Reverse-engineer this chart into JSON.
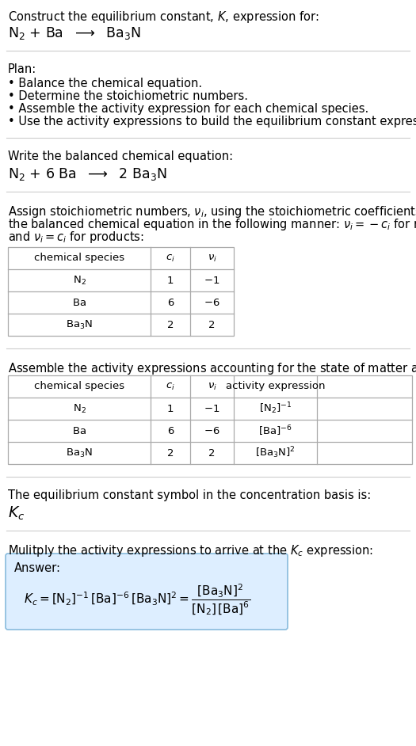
{
  "bg_color": "#ffffff",
  "text_color": "#000000",
  "table_border_color": "#aaaaaa",
  "answer_box_color": "#ddeeff",
  "answer_box_border": "#88bbdd",
  "separator_color": "#bbbbbb",
  "font_size": 10.5,
  "small_font": 9.5,
  "title_line1": "Construct the equilibrium constant, $K$, expression for:",
  "title_line2_parts": [
    "N",
    "2",
    " + Ba  ",
    "→",
    "  Ba",
    "3",
    "N"
  ],
  "plan_header": "Plan:",
  "plan_bullets": [
    "• Balance the chemical equation.",
    "• Determine the stoichiometric numbers.",
    "• Assemble the activity expression for each chemical species.",
    "• Use the activity expressions to build the equilibrium constant expression."
  ],
  "balanced_header": "Write the balanced chemical equation:",
  "stoich_header_lines": [
    "Assign stoichiometric numbers, $\\nu_i$, using the stoichiometric coefficients, $c_i$, from",
    "the balanced chemical equation in the following manner: $\\nu_i = -c_i$ for reactants",
    "and $\\nu_i = c_i$ for products:"
  ],
  "table1_headers": [
    "chemical species",
    "$c_i$",
    "$\\nu_i$"
  ],
  "table1_rows": [
    [
      "$\\mathrm{N_2}$",
      "1",
      "$-1$"
    ],
    [
      "$\\mathrm{Ba}$",
      "6",
      "$-6$"
    ],
    [
      "$\\mathrm{Ba_3N}$",
      "2",
      "2"
    ]
  ],
  "activity_header": "Assemble the activity expressions accounting for the state of matter and $\\nu_i$:",
  "table2_headers": [
    "chemical species",
    "$c_i$",
    "$\\nu_i$",
    "activity expression"
  ],
  "table2_rows": [
    [
      "$\\mathrm{N_2}$",
      "1",
      "$-1$",
      "$[\\mathrm{N_2}]^{-1}$"
    ],
    [
      "$\\mathrm{Ba}$",
      "6",
      "$-6$",
      "$[\\mathrm{Ba}]^{-6}$"
    ],
    [
      "$\\mathrm{Ba_3N}$",
      "2",
      "2",
      "$[\\mathrm{Ba_3N}]^{2}$"
    ]
  ],
  "kc_header": "The equilibrium constant symbol in the concentration basis is:",
  "multiply_header": "Mulitply the activity expressions to arrive at the $K_c$ expression:"
}
